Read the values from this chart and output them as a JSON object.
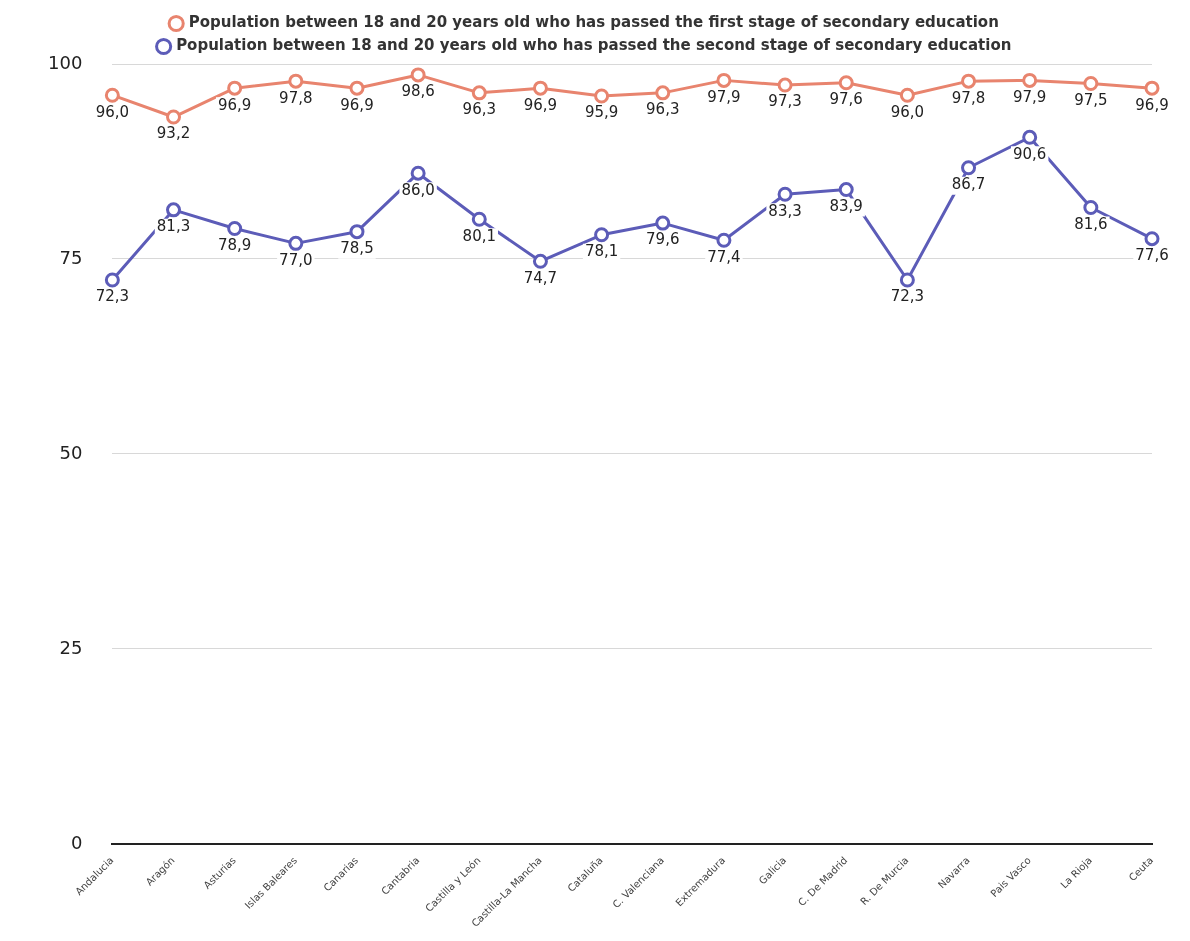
{
  "chart_data": {
    "type": "line",
    "categories": [
      "Andalucia",
      "Aragón",
      "Asturias",
      "Islas Baleares",
      "Canarias",
      "Cantabria",
      "Castilla y León",
      "Castilla-La Mancha",
      "Cataluña",
      "C. Valenciana",
      "Extremadura",
      "Galicia",
      "C. De Madrid",
      "R. De Murcia",
      "Navarra",
      "Pais Vasco",
      "La Rioja",
      "Ceuta"
    ],
    "series": [
      {
        "name": "Population between 18 and 20 years old who has passed the first stage of secondary education",
        "color": "#e8846e",
        "values": [
          96.0,
          93.2,
          96.9,
          97.8,
          96.9,
          98.6,
          96.3,
          96.9,
          95.9,
          96.3,
          97.9,
          97.3,
          97.6,
          96.0,
          97.8,
          97.9,
          97.5,
          96.9
        ],
        "value_labels": [
          "96,0",
          "93,2",
          "96,9",
          "97,8",
          "96,9",
          "98,6",
          "96,3",
          "96,9",
          "95,9",
          "96,3",
          "97,9",
          "97,3",
          "97,6",
          "96,0",
          "97,8",
          "97,9",
          "97,5",
          "96,9"
        ]
      },
      {
        "name": "Population between 18 and 20 years old who has passed the second stage of secondary education",
        "color": "#5c5cb8",
        "values": [
          72.3,
          81.3,
          78.9,
          77.0,
          78.5,
          86.0,
          80.1,
          74.7,
          78.1,
          79.6,
          77.4,
          83.3,
          83.9,
          72.3,
          86.7,
          90.6,
          81.6,
          77.6
        ],
        "value_labels": [
          "72,3",
          "81,3",
          "78,9",
          "77,0",
          "78,5",
          "86,0",
          "80,1",
          "74,7",
          "78,1",
          "79,6",
          "77,4",
          "83,3",
          "83,9",
          "72,3",
          "86,7",
          "90,6",
          "81,6",
          "77,6"
        ]
      }
    ],
    "ylim": [
      0,
      100
    ],
    "yticks": [
      0,
      25,
      50,
      75,
      100
    ],
    "grid": "y",
    "legend": "top",
    "marker": "circle",
    "line_style": "solid"
  }
}
